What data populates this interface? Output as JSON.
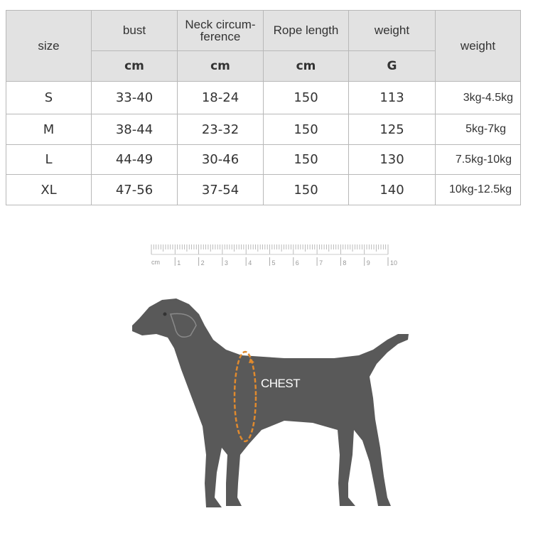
{
  "table": {
    "headers": {
      "size": "size",
      "bust": "bust",
      "neck": "Neck circum-\nference",
      "neck_line1": "Neck circum-",
      "neck_line2": "ference",
      "rope": "Rope length",
      "weight_g": "weight",
      "weight_dog": "weight"
    },
    "units": {
      "bust": "cm",
      "neck": "cm",
      "rope": "cm",
      "weight_g": "G"
    },
    "rows": [
      {
        "size": "S",
        "bust": "33-40",
        "neck": "18-24",
        "rope": "150",
        "weight_g": "113",
        "weight_dog": "3kg-4.5kg"
      },
      {
        "size": "M",
        "bust": "38-44",
        "neck": "23-32",
        "rope": "150",
        "weight_g": "125",
        "weight_dog": "5kg-7kg"
      },
      {
        "size": "L",
        "bust": "44-49",
        "neck": "30-46",
        "rope": "150",
        "weight_g": "130",
        "weight_dog": "7.5kg-10kg"
      },
      {
        "size": "XL",
        "bust": "47-56",
        "neck": "37-54",
        "rope": "150",
        "weight_g": "140",
        "weight_dog": "10kg-12.5kg"
      }
    ]
  },
  "ruler": {
    "unit": "cm",
    "labels": [
      "1",
      "2",
      "3",
      "4",
      "5",
      "6",
      "7",
      "8",
      "9",
      "10"
    ]
  },
  "diagram": {
    "chest_label": "CHEST",
    "dog_color": "#595959",
    "chest_ring_color": "#e08a2e"
  }
}
